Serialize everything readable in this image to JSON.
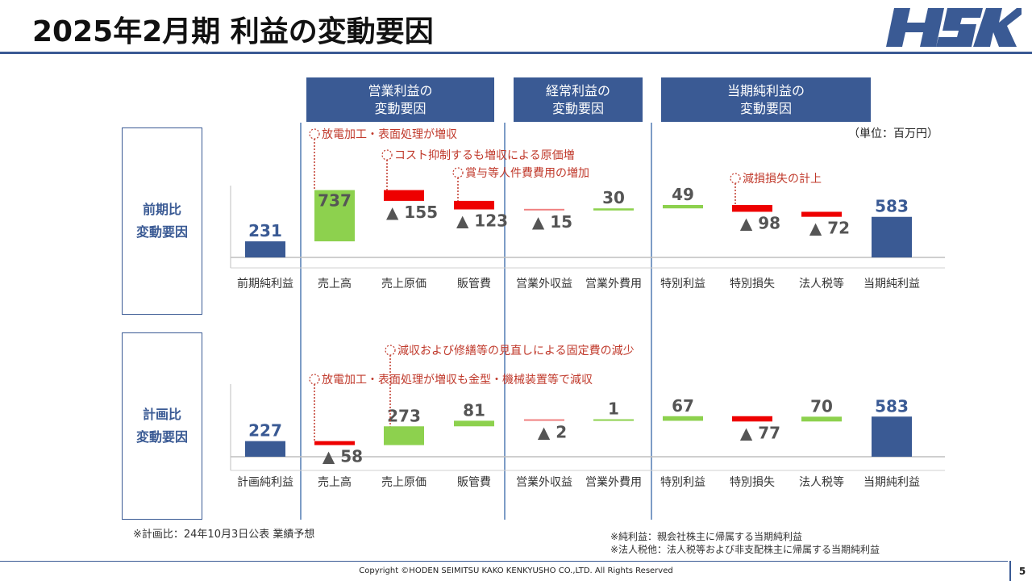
{
  "page": {
    "title": "2025年2月期 利益の変動要因",
    "logo_text": "HSK",
    "unit": "（単位：百万円）",
    "page_number": "5",
    "copyright": "Copyright ©HODEN SEIMITSU KAKO KENKYUSHO CO.,LTD. All Rights Reserved",
    "footnote_plan": "※計画比：24年10月3日公表 業績予想",
    "footnote_net": "※純利益：親会社株主に帰属する当期純利益",
    "footnote_tax": "※法人税他：法人税等および非支配株主に帰属する当期純利益"
  },
  "groups": [
    {
      "label": "営業利益の\n変動要因"
    },
    {
      "label": "経常利益の\n変動要因"
    },
    {
      "label": "当期純利益の\n変動要因"
    }
  ],
  "colors": {
    "total": "#3a5a94",
    "increase": "#8dd14e",
    "decrease": "#ee0000",
    "small_line": "#8dd14e",
    "annotation": "#c0392b"
  },
  "chart_data": [
    {
      "type": "bar",
      "subtype": "waterfall",
      "row_label": "前期比\n変動要因",
      "categories": [
        "前期純利益",
        "売上高",
        "売上原価",
        "販管費",
        "営業外収益",
        "営業外費用",
        "特別利益",
        "特別損失",
        "法人税等",
        "当期純利益"
      ],
      "values": [
        231,
        737,
        -155,
        -123,
        -15,
        30,
        49,
        -98,
        -72,
        583
      ],
      "kinds": [
        "total",
        "delta",
        "delta",
        "delta",
        "delta",
        "delta",
        "delta",
        "delta",
        "delta",
        "total"
      ],
      "labels": [
        "231",
        "737",
        "▲ 155",
        "▲ 123",
        "▲ 15",
        "30",
        "49",
        "▲ 98",
        "▲ 72",
        "583"
      ],
      "annotations": [
        {
          "category": "売上高",
          "text": "放電加工・表面処理が増収"
        },
        {
          "category": "売上原価",
          "text": "コスト抑制するも増収による原価増"
        },
        {
          "category": "販管費",
          "text": "賞与等人件費費用の増加"
        },
        {
          "category": "特別損失",
          "text": "減損損失の計上"
        }
      ]
    },
    {
      "type": "bar",
      "subtype": "waterfall",
      "row_label": "計画比\n変動要因",
      "categories": [
        "計画純利益",
        "売上高",
        "売上原価",
        "販管費",
        "営業外収益",
        "営業外費用",
        "特別利益",
        "特別損失",
        "法人税等",
        "当期純利益"
      ],
      "values": [
        227,
        -58,
        273,
        81,
        -2,
        1,
        67,
        -77,
        70,
        583
      ],
      "kinds": [
        "total",
        "delta",
        "delta",
        "delta",
        "delta",
        "delta",
        "delta",
        "delta",
        "delta",
        "total"
      ],
      "labels": [
        "227",
        "▲ 58",
        "273",
        "81",
        "▲ 2",
        "1",
        "67",
        "▲ 77",
        "70",
        "583"
      ],
      "annotations": [
        {
          "category": "売上高",
          "text": "放電加工・表面処理が増収も金型・機械装置等で減収"
        },
        {
          "category": "売上原価",
          "text": "減収および修繕等の見直しによる固定費の減少"
        }
      ]
    }
  ]
}
